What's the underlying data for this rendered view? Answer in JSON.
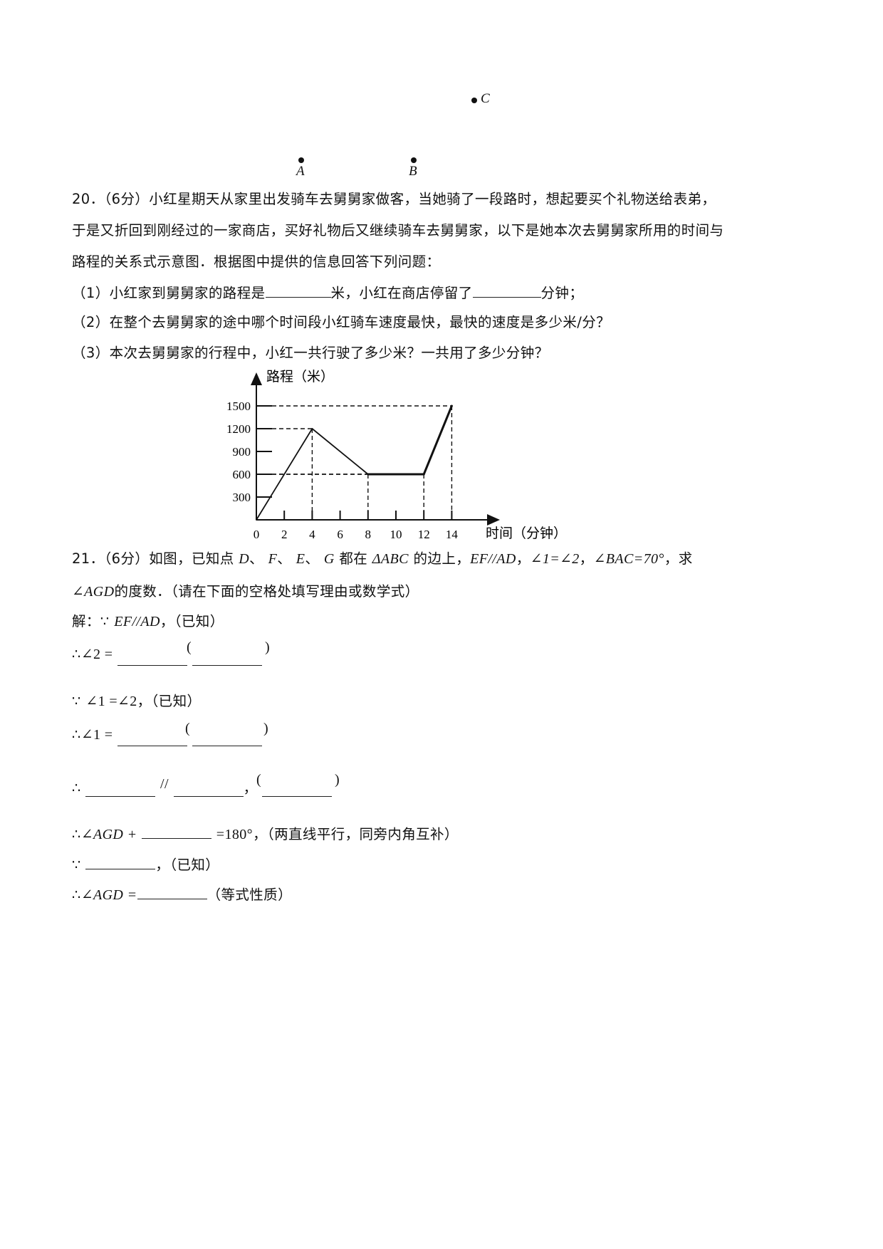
{
  "points": {
    "A": "A",
    "B": "B",
    "C": "C"
  },
  "q20": {
    "line1": "20．（6分）小红星期天从家里出发骑车去舅舅家做客，当她骑了一段路时，想起要买个礼物送给表弟，",
    "line2": "于是又折回到刚经过的一家商店，买好礼物后又继续骑车去舅舅家，以下是她本次去舅舅家所用的时间与",
    "line3": "路程的关系式示意图．根据图中提供的信息回答下列问题：",
    "sub1_a": "（1）小红家到舅舅家的路程是",
    "sub1_b": "米，小红在商店停留了",
    "sub1_c": "分钟；",
    "sub2": "（2）在整个去舅舅家的途中哪个时间段小红骑车速度最快，最快的速度是多少米/分？",
    "sub3": "（3）本次去舅舅家的行程中，小红一共行驶了多少米？一共用了多少分钟？"
  },
  "chart_data": {
    "type": "line",
    "ylabel": "路程（米）",
    "xlabel": "时间（分钟）",
    "x_ticks": [
      "0",
      "2",
      "4",
      "6",
      "8",
      "10",
      "12",
      "14"
    ],
    "y_ticks": [
      "300",
      "600",
      "900",
      "1200",
      "1500"
    ],
    "xlim": [
      0,
      14
    ],
    "ylim": [
      0,
      1500
    ],
    "series": [
      {
        "x": [
          0,
          4,
          8,
          12,
          14
        ],
        "y": [
          0,
          1200,
          600,
          600,
          1500
        ]
      }
    ],
    "guides": [
      {
        "x": 4,
        "y": 1200
      },
      {
        "x": 8,
        "y": 600
      },
      {
        "x": 12,
        "y": 600
      },
      {
        "x": 14,
        "y": 1500
      }
    ]
  },
  "q21": {
    "line1_a": "21．（6分）如图，已知点",
    "pts": [
      "D",
      "F",
      "E",
      "G"
    ],
    "sep": "、",
    "line1_b": "都在",
    "tri": "ΔABC",
    "line1_c": "的边上，",
    "cond1": "EF//AD",
    "comma": "，",
    "cond2": "∠1=∠2",
    "cond3": "∠BAC=70°",
    "line1_d": "，求",
    "line2_m": "∠AGD",
    "line2_t": "的度数．（请在下面的空格处填写理由或数学式）",
    "sol_head": "解：",
    "because": "∵",
    "therefore": "∴",
    "known": "，（已知）",
    "s2_m": "∠2 =",
    "s3_m": "∠1 =∠2",
    "s4_m": "∠1 =",
    "par": "//",
    "lp": "(",
    "rp": ")",
    "s6_m": "∠AGD +",
    "s6_eq": "=180°",
    "s6_t": "，（两直线平行，同旁内角互补）",
    "s8_m": "∠AGD =",
    "s8_t": "（等式性质）"
  }
}
